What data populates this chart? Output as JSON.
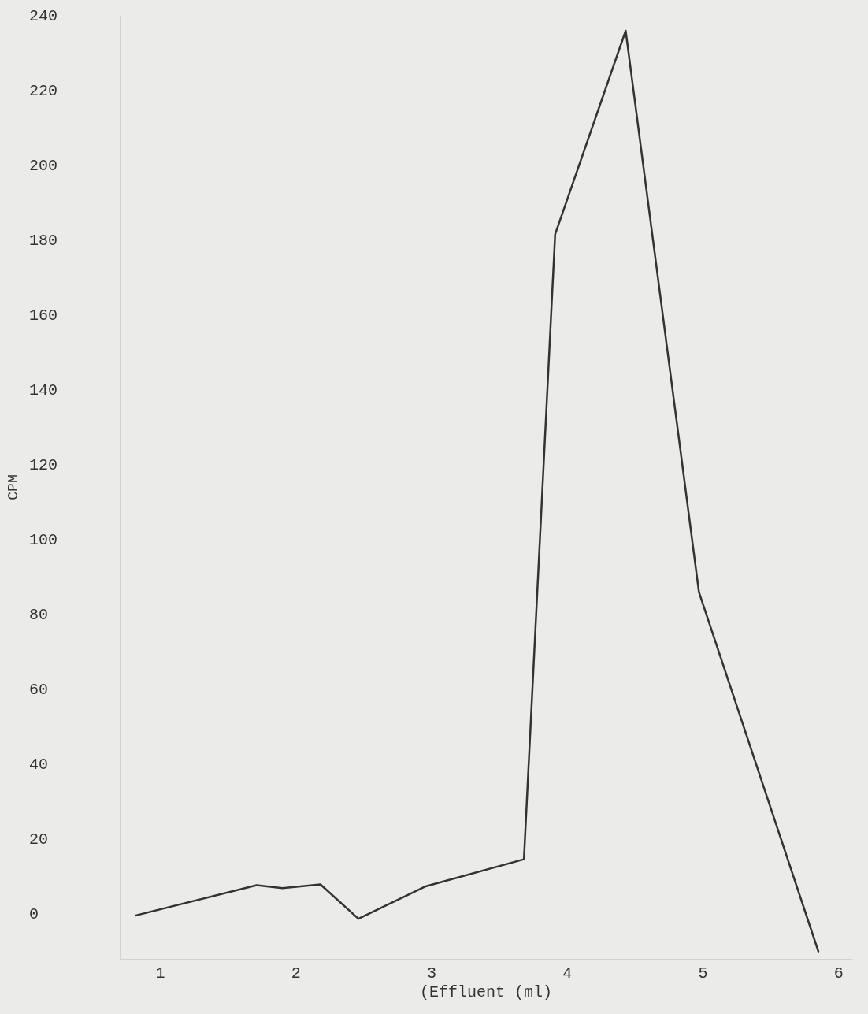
{
  "chart_data": {
    "type": "line",
    "xlabel": "(Effluent (ml)",
    "ylabel": "CPM",
    "x": [
      0.82,
      1.71,
      1.9,
      2.18,
      2.46,
      2.95,
      3.68,
      3.91,
      4.43,
      4.97,
      5.85
    ],
    "series": [
      {
        "color": "#333333",
        "values": [
          -0.4,
          7.7,
          6.9,
          7.9,
          -1.3,
          7.3,
          14.6,
          181.6,
          236,
          86,
          -10
        ]
      }
    ],
    "xlim": [
      0.7,
      6.1
    ],
    "xticks": [
      1,
      2,
      3,
      4,
      5,
      6
    ],
    "ylim": [
      -12,
      240
    ],
    "yticks": [
      0,
      20,
      40,
      60,
      80,
      100,
      120,
      140,
      160,
      180,
      200,
      220,
      240
    ],
    "grid": false,
    "marker": "none",
    "line_style": "solid"
  }
}
